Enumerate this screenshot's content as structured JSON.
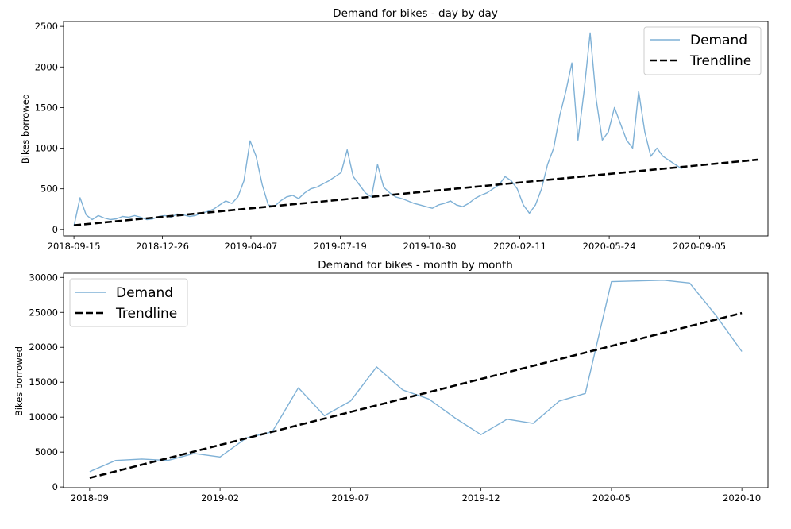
{
  "chart_data": [
    {
      "type": "line",
      "title": "Demand for bikes - day by day",
      "xlabel": "",
      "ylabel": "Bikes borrowed",
      "x_ticks": [
        "2018-09-15",
        "2018-12-26",
        "2019-04-07",
        "2019-07-19",
        "2019-10-30",
        "2020-02-11",
        "2020-05-24",
        "2020-09-05"
      ],
      "y_ticks": [
        0,
        500,
        1000,
        1500,
        2000,
        2500
      ],
      "xlim": [
        "2018-09-03",
        "2020-11-23"
      ],
      "ylim": [
        -80,
        2560
      ],
      "legend": {
        "position": "top-right",
        "entries": [
          "Demand",
          "Trendline"
        ]
      },
      "series": [
        {
          "name": "Demand",
          "color": "#7fb1d6",
          "style": "solid",
          "x_start": "2018-09-15",
          "x_step_days": 7,
          "values": [
            40,
            390,
            180,
            120,
            170,
            140,
            120,
            130,
            160,
            150,
            170,
            150,
            120,
            130,
            160,
            170,
            150,
            190,
            180,
            160,
            170,
            200,
            220,
            250,
            300,
            350,
            320,
            400,
            600,
            1090,
            900,
            550,
            300,
            280,
            350,
            400,
            420,
            380,
            450,
            500,
            520,
            560,
            600,
            650,
            700,
            980,
            650,
            550,
            450,
            400,
            800,
            520,
            450,
            400,
            380,
            350,
            320,
            300,
            280,
            260,
            300,
            320,
            350,
            300,
            280,
            320,
            380,
            420,
            450,
            500,
            550,
            650,
            600,
            500,
            300,
            200,
            300,
            500,
            800,
            1000,
            1400,
            1700,
            2050,
            1100,
            1700,
            2420,
            1600,
            1100,
            1200,
            1500,
            1300,
            1100,
            1000,
            1700,
            1200,
            900,
            1000,
            900,
            850,
            800,
            750,
            780
          ]
        },
        {
          "name": "Trendline",
          "color": "#000000",
          "style": "dashed",
          "x": [
            "2018-09-15",
            "2020-11-12"
          ],
          "y": [
            50,
            860
          ]
        }
      ]
    },
    {
      "type": "line",
      "title": "Demand for bikes - month by month",
      "xlabel": "",
      "ylabel": "Bikes borrowed",
      "x_ticks": [
        "2018-09",
        "2019-02",
        "2019-07",
        "2019-12",
        "2020-05",
        "2020-10"
      ],
      "y_ticks": [
        0,
        5000,
        10000,
        15000,
        20000,
        25000,
        30000
      ],
      "xlim": [
        "2018-08",
        "2020-11"
      ],
      "ylim": [
        -100,
        30600
      ],
      "legend": {
        "position": "top-left",
        "entries": [
          "Demand",
          "Trendline"
        ]
      },
      "series": [
        {
          "name": "Demand",
          "color": "#7fb1d6",
          "style": "solid",
          "x": [
            "2018-09",
            "2018-10",
            "2018-11",
            "2018-12",
            "2019-01",
            "2019-02",
            "2019-03",
            "2019-04",
            "2019-05",
            "2019-06",
            "2019-07",
            "2019-08",
            "2019-09",
            "2019-10",
            "2019-11",
            "2019-12",
            "2020-01",
            "2020-02",
            "2020-03",
            "2020-04",
            "2020-05",
            "2020-06",
            "2020-07",
            "2020-08",
            "2020-09",
            "2020-10"
          ],
          "y": [
            2200,
            3800,
            4000,
            3800,
            4800,
            4300,
            7000,
            7900,
            14200,
            10200,
            12300,
            17200,
            13900,
            12600,
            9900,
            7500,
            9700,
            9100,
            12300,
            13400,
            29400,
            29500,
            29600,
            29200,
            24600,
            19400
          ]
        },
        {
          "name": "Trendline",
          "color": "#000000",
          "style": "dashed",
          "x": [
            "2018-09",
            "2020-10"
          ],
          "y": [
            1300,
            24900
          ]
        }
      ]
    }
  ]
}
